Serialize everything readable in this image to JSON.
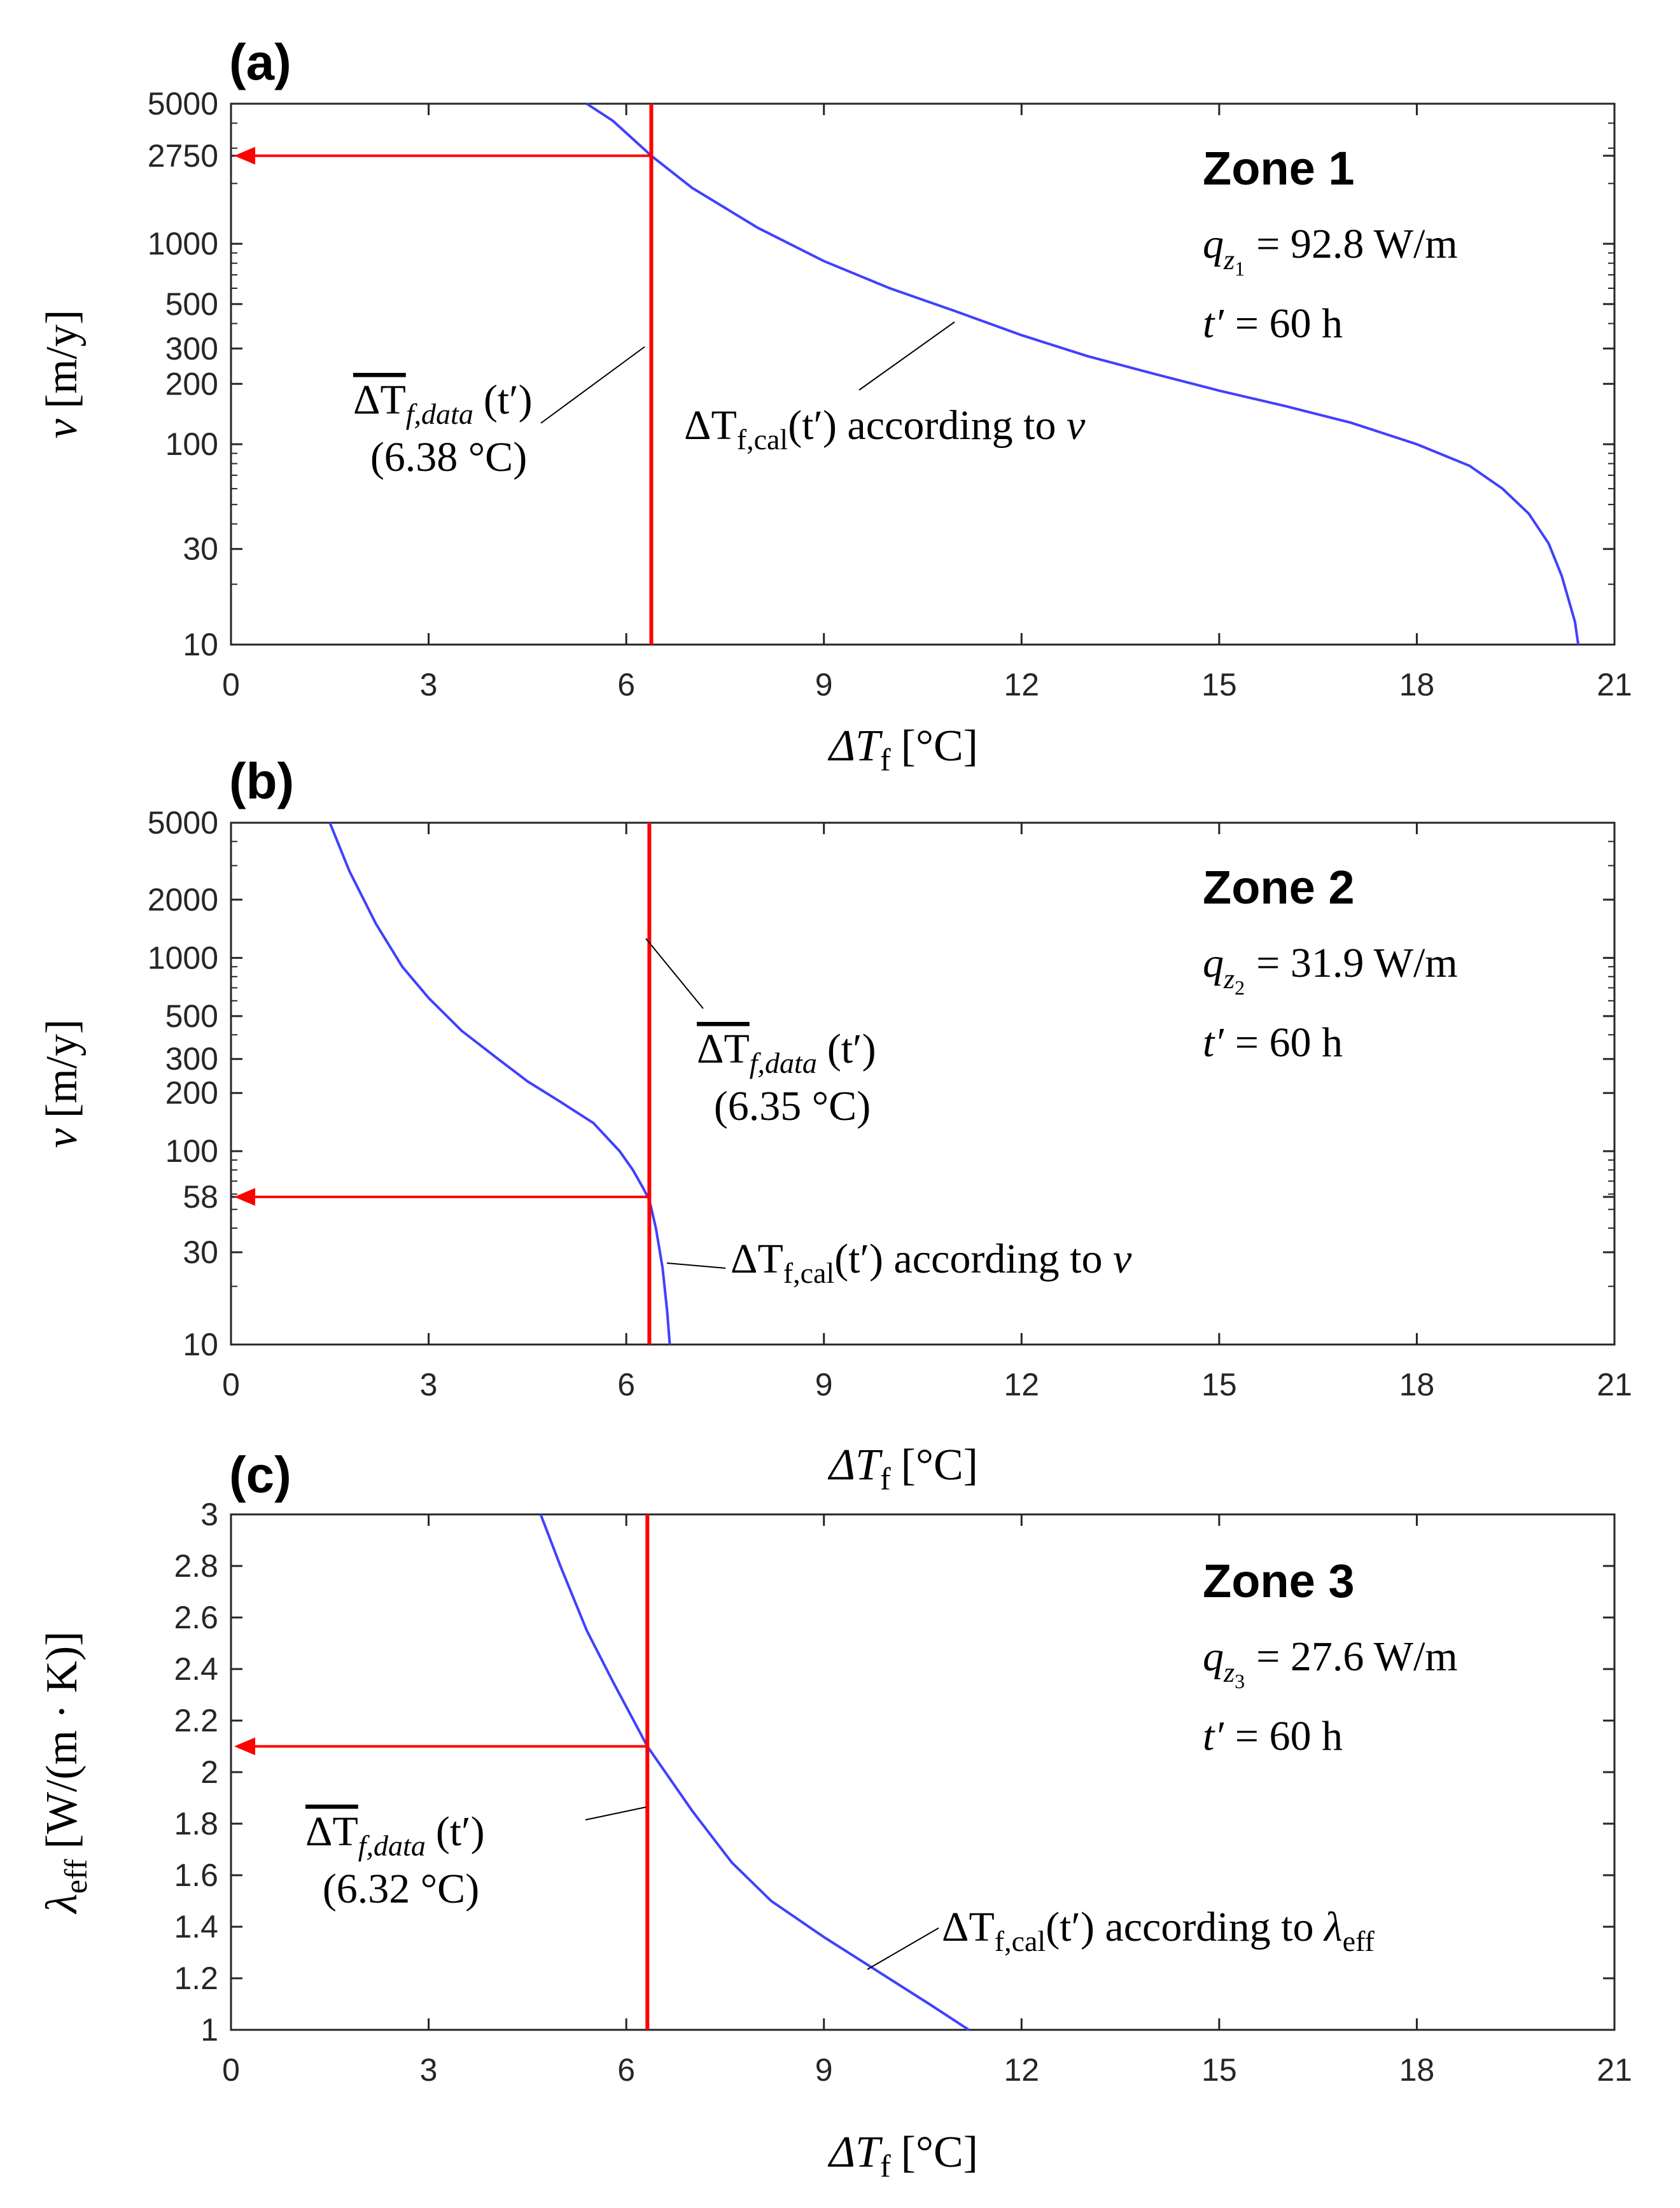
{
  "colors": {
    "curve": "#4040ff",
    "marker": "#ff0000",
    "axis": "#262626"
  },
  "chart_data": [
    {
      "type": "line",
      "panel_label": "(a)",
      "zone_title": "Zone 1",
      "heat_rate_sym": "q",
      "heat_rate_sub": "z",
      "heat_rate_subsub": "1",
      "heat_rate_value": "= 92.8 W/m",
      "time_sym": "t′",
      "time_value": "= 60 h",
      "xlabel_sym": "ΔT",
      "xlabel_sub": "f",
      "xlabel_unit": "[°C]",
      "ylabel_sym": "v",
      "ylabel_unit": "[m/y]",
      "ylabel_sub": "",
      "xlim": [
        0,
        21
      ],
      "yscale": "log",
      "ylim": [
        10,
        5000
      ],
      "xticks": [
        "0",
        "3",
        "6",
        "9",
        "12",
        "15",
        "18",
        "21"
      ],
      "yticks": [
        10,
        30,
        100,
        200,
        300,
        500,
        1000,
        2750,
        5000
      ],
      "ytick_labels": [
        "10",
        "30",
        "100",
        "200",
        "300",
        "500",
        "1000",
        "2750",
        "5000"
      ],
      "series": [
        {
          "name": "ΔTf,cal(t′) according to v",
          "x": [
            5.4,
            5.8,
            6.38,
            7.0,
            8.0,
            9.0,
            10.0,
            11.0,
            12.0,
            13.0,
            14.0,
            15.0,
            16.0,
            17.0,
            18.0,
            18.8,
            19.3,
            19.7,
            20.0,
            20.2,
            20.4,
            20.45
          ],
          "y": [
            5000,
            4100,
            2750,
            1900,
            1200,
            820,
            600,
            460,
            350,
            275,
            225,
            185,
            155,
            128,
            100,
            78,
            60,
            45,
            32,
            22,
            13,
            10
          ]
        }
      ],
      "measured": {
        "x": 6.38,
        "y": 2750,
        "label_sym": "ΔT",
        "label_sub": "f,data",
        "label_arg": "(t′)",
        "value_label": "(6.38 °C)"
      },
      "curve_label": {
        "prefix": "ΔT",
        "sub": "f,cal",
        "arg": "(t′) according to ",
        "var": "v",
        "var_sub": ""
      }
    },
    {
      "type": "line",
      "panel_label": "(b)",
      "zone_title": "Zone 2",
      "heat_rate_sym": "q",
      "heat_rate_sub": "z",
      "heat_rate_subsub": "2",
      "heat_rate_value": "= 31.9 W/m",
      "time_sym": "t′",
      "time_value": "= 60 h",
      "xlabel_sym": "ΔT",
      "xlabel_sub": "f",
      "xlabel_unit": "[°C]",
      "ylabel_sym": "v",
      "ylabel_unit": "[m/y]",
      "ylabel_sub": "",
      "xlim": [
        0,
        21
      ],
      "yscale": "log",
      "ylim": [
        10,
        5000
      ],
      "xticks": [
        "0",
        "3",
        "6",
        "9",
        "12",
        "15",
        "18",
        "21"
      ],
      "yticks": [
        10,
        30,
        58,
        100,
        200,
        300,
        500,
        1000,
        2000,
        5000
      ],
      "ytick_labels": [
        "10",
        "30",
        "58",
        "100",
        "200",
        "300",
        "500",
        "1000",
        "2000",
        "5000"
      ],
      "series": [
        {
          "name": "ΔTf,cal(t′) according to v",
          "x": [
            1.5,
            1.8,
            2.2,
            2.6,
            3.0,
            3.5,
            4.0,
            4.5,
            5.0,
            5.5,
            5.9,
            6.1,
            6.25,
            6.35,
            6.45,
            6.55,
            6.62,
            6.66
          ],
          "y": [
            5000,
            2800,
            1500,
            900,
            620,
            420,
            310,
            230,
            180,
            140,
            100,
            80,
            65,
            56,
            40,
            25,
            15,
            10
          ]
        }
      ],
      "measured": {
        "x": 6.35,
        "y": 58,
        "label_sym": "ΔT",
        "label_sub": "f,data",
        "label_arg": "(t′)",
        "value_label": "(6.35 °C)"
      },
      "curve_label": {
        "prefix": "ΔT",
        "sub": "f,cal",
        "arg": "(t′) according to ",
        "var": "v",
        "var_sub": ""
      }
    },
    {
      "type": "line",
      "panel_label": "(c)",
      "zone_title": "Zone 3",
      "heat_rate_sym": "q",
      "heat_rate_sub": "z",
      "heat_rate_subsub": "3",
      "heat_rate_value": "= 27.6 W/m",
      "time_sym": "t′",
      "time_value": "= 60 h",
      "xlabel_sym": "ΔT",
      "xlabel_sub": "f",
      "xlabel_unit": "[°C]",
      "ylabel_sym": "λ",
      "ylabel_sub": "eff",
      "ylabel_unit": "[W/(m · K)]",
      "xlim": [
        0,
        21
      ],
      "yscale": "linear",
      "ylim": [
        1,
        3
      ],
      "xticks": [
        "0",
        "3",
        "6",
        "9",
        "12",
        "15",
        "18",
        "21"
      ],
      "yticks": [
        1,
        1.2,
        1.4,
        1.6,
        1.8,
        2,
        2.2,
        2.4,
        2.6,
        2.8,
        3
      ],
      "ytick_labels": [
        "1",
        "1.2",
        "1.4",
        "1.6",
        "1.8",
        "2",
        "2.2",
        "2.4",
        "2.6",
        "2.8",
        "3"
      ],
      "series": [
        {
          "name": "ΔTf,cal(t′) according to λeff",
          "x": [
            4.7,
            5.0,
            5.4,
            5.8,
            6.32,
            7.0,
            7.6,
            8.2,
            9.0,
            9.8,
            10.6,
            11.2
          ],
          "y": [
            3.0,
            2.8,
            2.55,
            2.35,
            2.1,
            1.85,
            1.65,
            1.5,
            1.36,
            1.23,
            1.1,
            1.0
          ]
        }
      ],
      "measured": {
        "x": 6.32,
        "y": 2.1,
        "label_sym": "ΔT",
        "label_sub": "f,data",
        "label_arg": "(t′)",
        "value_label": "(6.32 °C)"
      },
      "curve_label": {
        "prefix": "ΔT",
        "sub": "f,cal",
        "arg": "(t′) according to ",
        "var": "λ",
        "var_sub": "eff"
      }
    }
  ]
}
